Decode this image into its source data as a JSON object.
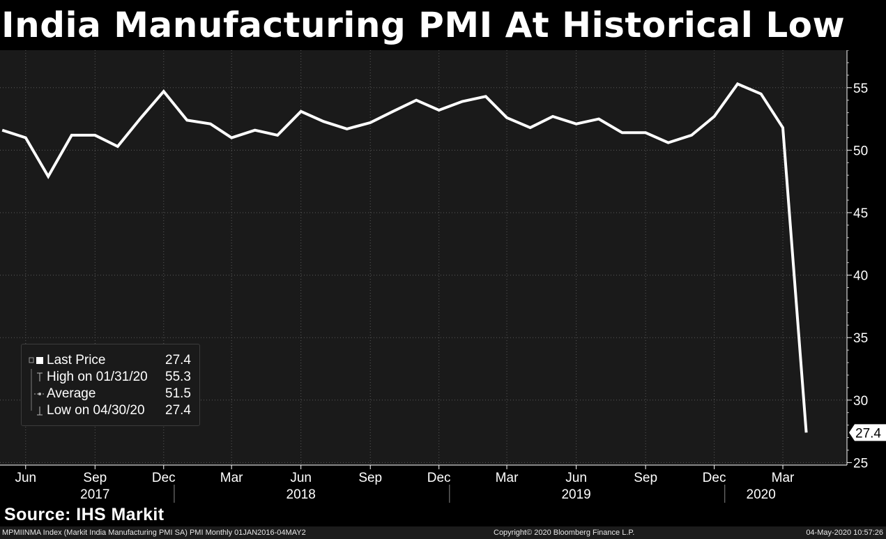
{
  "title": "India Manufacturing PMI At Historical Low",
  "source": "Source: IHS Markit",
  "footer": {
    "left": "MPMIINMA Index (Markit India Manufacturing PMI SA) PMI  Monthly 01JAN2016-04MAY2",
    "center": "Copyright© 2020 Bloomberg Finance L.P.",
    "right": "04-May-2020 10:57:26"
  },
  "legend": {
    "items": [
      {
        "label": "Last Price",
        "value": "27.4"
      },
      {
        "label": "High on 01/31/20",
        "value": "55.3"
      },
      {
        "label": "Average",
        "value": "51.5"
      },
      {
        "label": "Low on 04/30/20",
        "value": "27.4"
      }
    ]
  },
  "colors": {
    "background": "#000000",
    "plot_background": "#1a1a1a",
    "line": "#ffffff",
    "grid": "#5a5a5a"
  },
  "chart_data": {
    "type": "line",
    "title": "India Manufacturing PMI At Historical Low",
    "x": [
      "2017-05",
      "2017-06",
      "2017-07",
      "2017-08",
      "2017-09",
      "2017-10",
      "2017-11",
      "2017-12",
      "2018-01",
      "2018-02",
      "2018-03",
      "2018-04",
      "2018-05",
      "2018-06",
      "2018-07",
      "2018-08",
      "2018-09",
      "2018-10",
      "2018-11",
      "2018-12",
      "2019-01",
      "2019-02",
      "2019-03",
      "2019-04",
      "2019-05",
      "2019-06",
      "2019-07",
      "2019-08",
      "2019-09",
      "2019-10",
      "2019-11",
      "2019-12",
      "2020-01",
      "2020-02",
      "2020-03",
      "2020-04"
    ],
    "series": [
      {
        "values": [
          51.6,
          51.0,
          47.9,
          51.2,
          51.2,
          50.3,
          52.6,
          54.7,
          52.4,
          52.1,
          51.0,
          51.6,
          51.2,
          53.1,
          52.3,
          51.7,
          52.2,
          53.1,
          54.0,
          53.2,
          53.9,
          54.3,
          52.6,
          51.8,
          52.7,
          52.1,
          52.5,
          51.4,
          51.4,
          50.6,
          51.2,
          52.7,
          55.3,
          54.5,
          51.8,
          27.4
        ]
      }
    ],
    "xticks": [
      {
        "date": "2017-06",
        "label": "Jun"
      },
      {
        "date": "2017-09",
        "label": "Sep"
      },
      {
        "date": "2017-12",
        "label": "Dec"
      },
      {
        "date": "2018-03",
        "label": "Mar"
      },
      {
        "date": "2018-06",
        "label": "Jun"
      },
      {
        "date": "2018-09",
        "label": "Sep"
      },
      {
        "date": "2018-12",
        "label": "Dec"
      },
      {
        "date": "2019-03",
        "label": "Mar"
      },
      {
        "date": "2019-06",
        "label": "Jun"
      },
      {
        "date": "2019-09",
        "label": "Sep"
      },
      {
        "date": "2019-12",
        "label": "Dec"
      },
      {
        "date": "2020-03",
        "label": "Mar"
      }
    ],
    "years": [
      {
        "date": "2017-09",
        "label": "2017"
      },
      {
        "date": "2018-06",
        "label": "2018"
      },
      {
        "date": "2019-06",
        "label": "2019"
      },
      {
        "date": "2020-02",
        "label": "2020"
      }
    ],
    "year_dividers": [
      "2017-12-15",
      "2018-12-15",
      "2019-12-15"
    ],
    "yticks": [
      25,
      30,
      35,
      40,
      45,
      50,
      55
    ],
    "ylim": [
      24.8,
      58.0
    ],
    "xlim": [
      "2017-04-28",
      "2020-05-25"
    ],
    "last_value_label": "27.4",
    "grid": true,
    "y_axis_position": "right",
    "legend_position": "bottom-left"
  }
}
